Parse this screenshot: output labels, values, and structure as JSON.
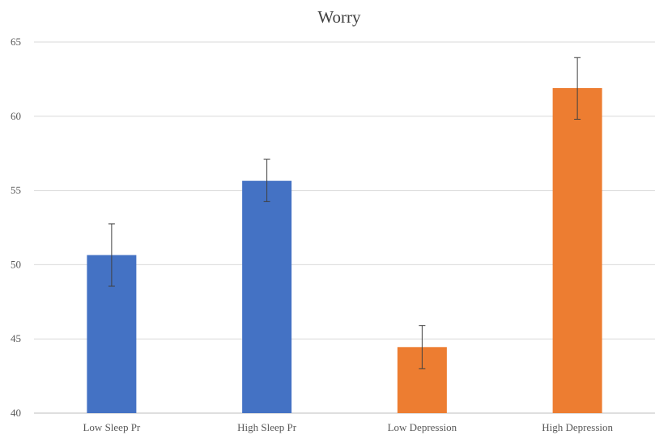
{
  "chart_data": {
    "type": "bar",
    "title": "Worry",
    "xlabel": "",
    "ylabel": "",
    "categories": [
      "Low Sleep Pr",
      "High Sleep Pr",
      "Low Depression",
      "High Depression"
    ],
    "values": [
      50.65,
      55.65,
      44.45,
      61.9
    ],
    "error_low": [
      48.55,
      54.25,
      43.0,
      59.8
    ],
    "error_high": [
      52.75,
      57.1,
      45.9,
      63.95
    ],
    "colors": [
      "#4472C4",
      "#4472C4",
      "#ED7D31",
      "#ED7D31"
    ],
    "ylim": [
      40,
      65
    ],
    "yticks": [
      40,
      45,
      50,
      55,
      60,
      65
    ],
    "grid": true,
    "legend": "none"
  }
}
